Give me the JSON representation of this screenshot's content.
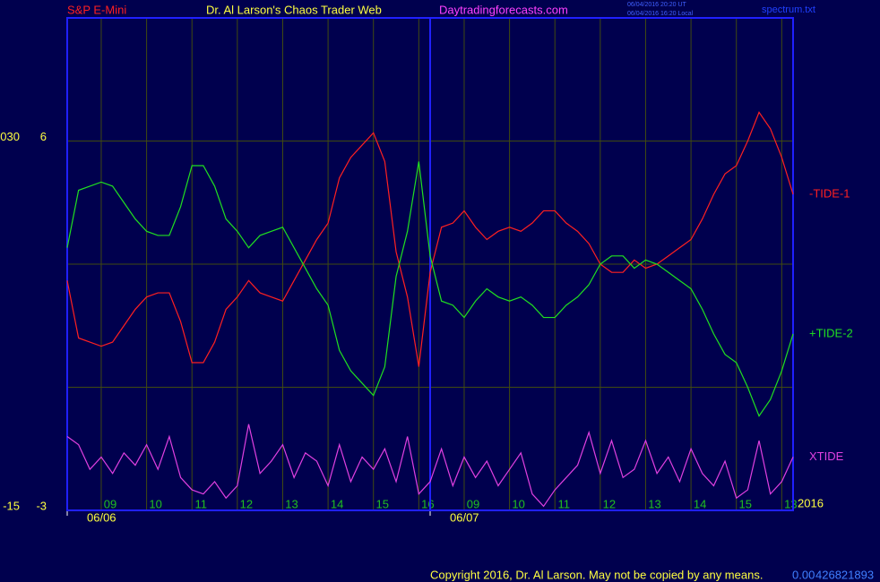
{
  "chart_data": {
    "type": "line",
    "header": {
      "symbol": "S&P E-Mini",
      "title": "Dr. Al Larson's Chaos Trader Web",
      "site": "Daytradingforecasts.com",
      "time_ut": "06/04/2016 20:20 UT",
      "time_local": "06/04/2016 16:20 Local",
      "file": "spectrum.txt"
    },
    "x": [
      0,
      0.25,
      0.5,
      0.75,
      1,
      1.25,
      1.5,
      1.75,
      2,
      2.25,
      2.5,
      2.75,
      3,
      3.25,
      3.5,
      3.75,
      4,
      4.25,
      4.5,
      4.75,
      5,
      5.25,
      5.5,
      5.75,
      6,
      6.25,
      6.5,
      6.75,
      7,
      7.25,
      7.5,
      7.75,
      8,
      8.25,
      8.5,
      8.75,
      9,
      9.25,
      9.5,
      9.75,
      10,
      10.25,
      10.5,
      10.75,
      11,
      11.25,
      11.5,
      11.75,
      12,
      12.25,
      12.5,
      12.75,
      13,
      13.25,
      13.5,
      13.75,
      14,
      14.25,
      14.5,
      14.75,
      15,
      15.25,
      15.5,
      15.75,
      16
    ],
    "series": [
      {
        "name": "-TIDE-1",
        "color": "#ff2020",
        "values": [
          2.6,
          1.2,
          1.1,
          1.0,
          1.1,
          1.5,
          1.9,
          2.2,
          2.3,
          2.3,
          1.6,
          0.6,
          0.6,
          1.1,
          1.9,
          2.2,
          2.6,
          2.3,
          2.2,
          2.1,
          2.6,
          3.1,
          3.6,
          4.0,
          5.1,
          5.6,
          5.9,
          6.2,
          5.5,
          3.3,
          2.2,
          0.5,
          2.8,
          3.9,
          4.0,
          4.3,
          3.9,
          3.6,
          3.8,
          3.9,
          3.8,
          4.0,
          4.3,
          4.3,
          4.0,
          3.8,
          3.5,
          3.0,
          2.8,
          2.8,
          3.1,
          2.9,
          3.0,
          3.2,
          3.4,
          3.6,
          4.1,
          4.7,
          5.2,
          5.4,
          6.0,
          6.7,
          6.3,
          5.6,
          4.7
        ]
      },
      {
        "name": "+TIDE-2",
        "color": "#20e020",
        "values": [
          3.4,
          4.8,
          4.9,
          5.0,
          4.9,
          4.5,
          4.1,
          3.8,
          3.7,
          3.7,
          4.4,
          5.4,
          5.4,
          4.9,
          4.1,
          3.8,
          3.4,
          3.7,
          3.8,
          3.9,
          3.4,
          2.9,
          2.4,
          2.0,
          0.9,
          0.4,
          0.1,
          -0.2,
          0.5,
          2.7,
          3.8,
          5.5,
          3.2,
          2.1,
          2.0,
          1.7,
          2.1,
          2.4,
          2.2,
          2.1,
          2.2,
          2.0,
          1.7,
          1.7,
          2.0,
          2.2,
          2.5,
          3.0,
          3.2,
          3.2,
          2.9,
          3.1,
          3.0,
          2.8,
          2.6,
          2.4,
          1.9,
          1.3,
          0.8,
          0.6,
          0.0,
          -0.7,
          -0.3,
          0.4,
          1.3
        ]
      },
      {
        "name": "XTIDE",
        "color": "#e040e0",
        "values": [
          -1.2,
          -1.4,
          -2.0,
          -1.7,
          -2.1,
          -1.6,
          -1.9,
          -1.4,
          -2.0,
          -1.2,
          -2.2,
          -2.5,
          -2.6,
          -2.3,
          -2.7,
          -2.4,
          -0.9,
          -2.1,
          -1.8,
          -1.4,
          -2.2,
          -1.6,
          -1.8,
          -2.4,
          -1.4,
          -2.3,
          -1.7,
          -2.0,
          -1.5,
          -2.3,
          -1.2,
          -2.6,
          -2.3,
          -1.5,
          -2.4,
          -1.7,
          -2.2,
          -1.8,
          -2.4,
          -2.0,
          -1.6,
          -2.6,
          -2.9,
          -2.5,
          -2.2,
          -1.9,
          -1.1,
          -2.1,
          -1.3,
          -2.2,
          -2.0,
          -1.3,
          -2.1,
          -1.7,
          -2.3,
          -1.5,
          -2.1,
          -2.4,
          -1.8,
          -2.7,
          -2.5,
          -1.3,
          -2.6,
          -2.3,
          -1.7
        ]
      }
    ],
    "xlim": [
      0,
      16
    ],
    "ylim": [
      -3,
      9
    ],
    "yticks": [
      6,
      {
        "value": 3,
        "label": null
      },
      {
        "value": 0,
        "label": null
      },
      -3
    ],
    "y2lim": [
      -15,
      45
    ],
    "y2ticks": [
      {
        "value": 30,
        "label": "030"
      },
      -15
    ],
    "xticks": [
      {
        "value": 0.75,
        "label": "09"
      },
      {
        "value": 1.75,
        "label": "10"
      },
      {
        "value": 2.75,
        "label": "11"
      },
      {
        "value": 3.75,
        "label": "12"
      },
      {
        "value": 4.75,
        "label": "13"
      },
      {
        "value": 5.75,
        "label": "14"
      },
      {
        "value": 6.75,
        "label": "15"
      },
      {
        "value": 7.75,
        "label": "16"
      },
      {
        "value": 8.75,
        "label": "09"
      },
      {
        "value": 9.75,
        "label": "10"
      },
      {
        "value": 10.75,
        "label": "11"
      },
      {
        "value": 11.75,
        "label": "12"
      },
      {
        "value": 12.75,
        "label": "13"
      },
      {
        "value": 13.75,
        "label": "14"
      },
      {
        "value": 14.75,
        "label": "15"
      },
      {
        "value": 15.75,
        "label": "13"
      }
    ],
    "date_ticks": [
      {
        "value": 0,
        "label": "06/06"
      },
      {
        "value": 8,
        "label": "06/07"
      }
    ],
    "year": "2016",
    "grid": true,
    "footer": {
      "copyright": "Copyright 2016, Dr. Al Larson. May not be copied by any means.",
      "code_a": "0.00",
      "code_b": "426821893"
    }
  }
}
